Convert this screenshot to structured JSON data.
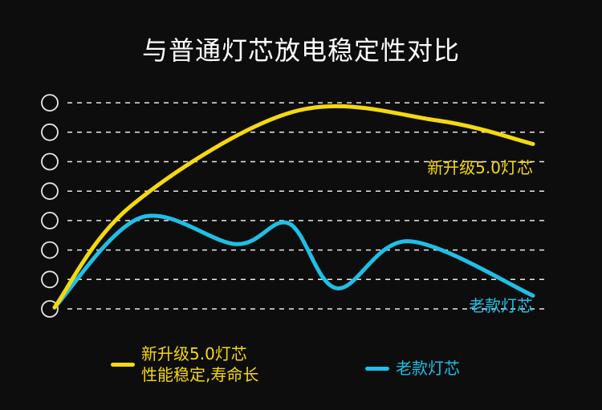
{
  "title": "与普通灯芯放电稳定性对比",
  "colors": {
    "new": "#f5d90f",
    "old": "#1fbfe6"
  },
  "chart_data": {
    "type": "line",
    "title": "与普通灯芯放电稳定性对比",
    "xlabel": "",
    "ylabel": "",
    "y_tick_count": 8,
    "grid": true,
    "legend": "bottom",
    "series": [
      {
        "name": "新升级5.0灯芯",
        "label": "新升级5.0灯芯",
        "legend_lines": [
          "新升级5.0灯芯",
          "性能稳定,寿命长"
        ],
        "points": [
          [
            0,
            0.05
          ],
          [
            0.16,
            3.5
          ],
          [
            0.5,
            6.7
          ],
          [
            0.8,
            6.4
          ],
          [
            1,
            5.6
          ]
        ]
      },
      {
        "name": "老款灯芯",
        "label": "老款灯芯",
        "legend_lines": [
          "老款灯芯"
        ],
        "points": [
          [
            0,
            0.05
          ],
          [
            0.18,
            3.1
          ],
          [
            0.38,
            2.2
          ],
          [
            0.49,
            2.9
          ],
          [
            0.59,
            0.7
          ],
          [
            0.74,
            2.3
          ],
          [
            1,
            0.45
          ]
        ]
      }
    ]
  }
}
